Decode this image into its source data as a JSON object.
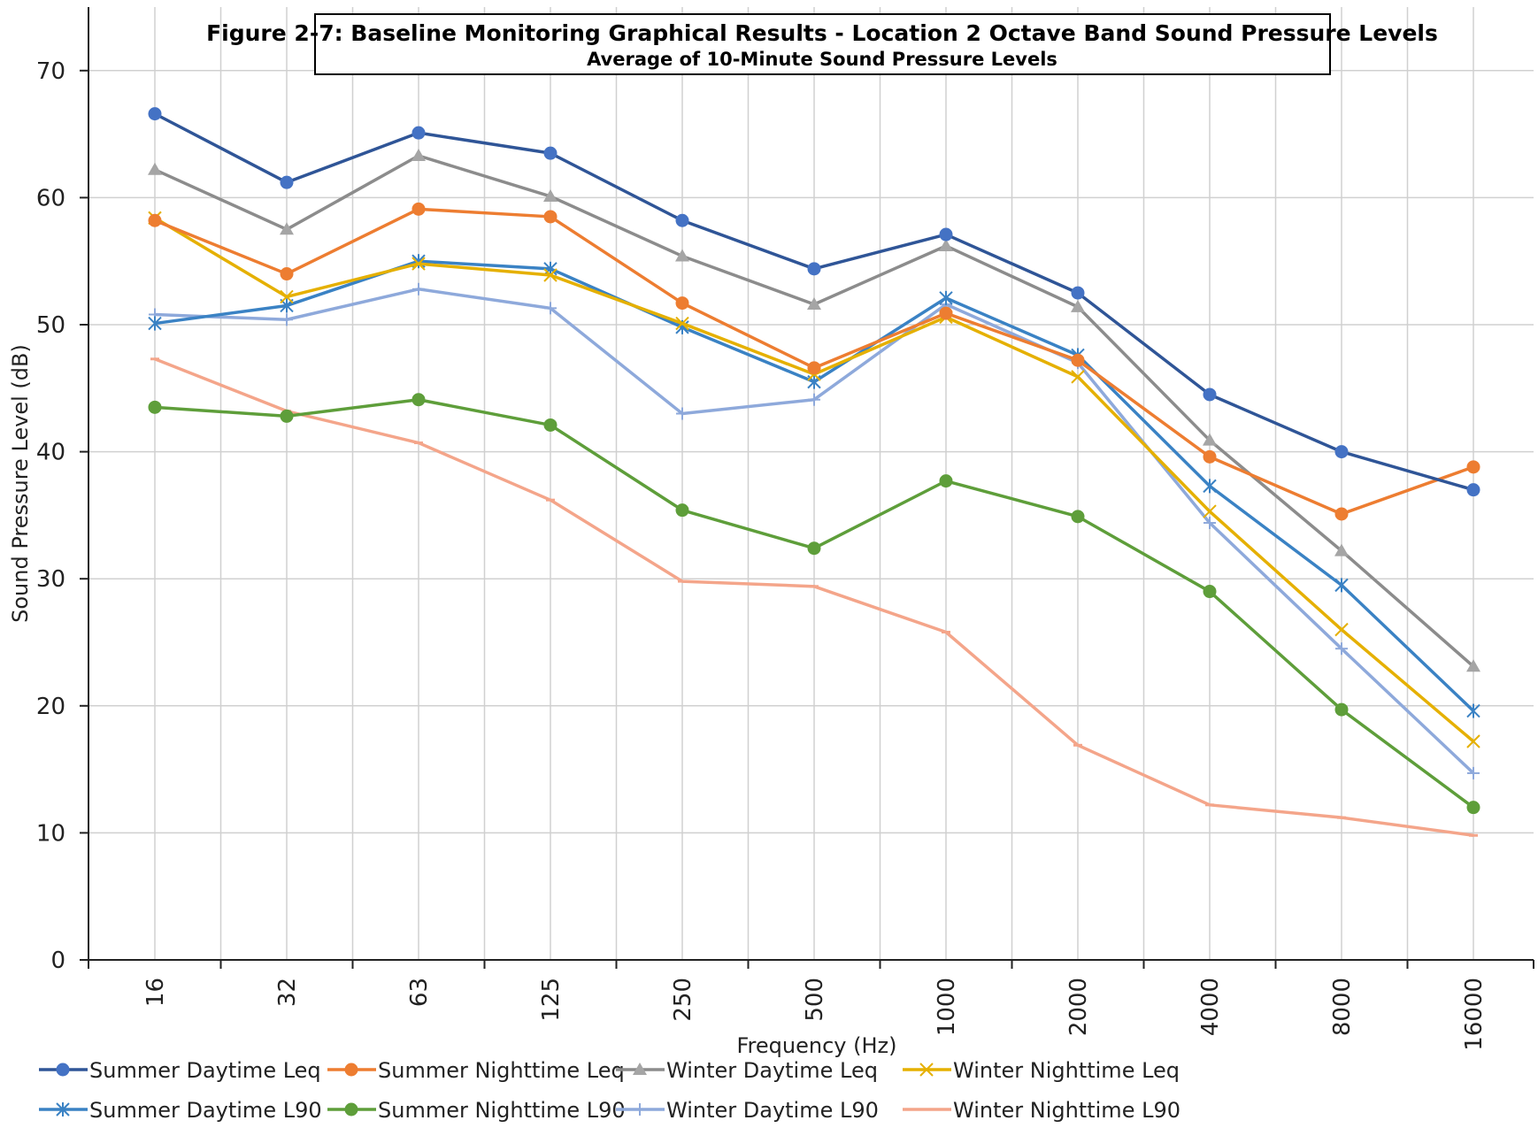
{
  "chart_data": {
    "type": "line",
    "title": "Figure 2-7:  Baseline Monitoring Graphical Results - Location 2 Octave Band Sound Pressure Levels",
    "subtitle": "Average of 10-Minute Sound Pressure Levels",
    "xlabel": "Frequency (Hz)",
    "ylabel": "Sound Pressure Level (dB)",
    "categories": [
      "16",
      "32",
      "63",
      "125",
      "250",
      "500",
      "1000",
      "2000",
      "4000",
      "8000",
      "16000"
    ],
    "ylim": [
      0,
      75
    ],
    "yticks": [
      0,
      10,
      20,
      30,
      40,
      50,
      60,
      70
    ],
    "grid": true,
    "legend_position": "bottom",
    "series": [
      {
        "name": "Summer Daytime Leq",
        "color": "#4472C4",
        "line_color": "#2F5597",
        "marker": "circle",
        "values": [
          66.6,
          61.2,
          65.1,
          63.5,
          58.2,
          54.4,
          57.1,
          52.5,
          44.5,
          40.0,
          37.0
        ]
      },
      {
        "name": "Summer Nighttime Leq",
        "color": "#ED7D31",
        "marker": "circle",
        "values": [
          58.2,
          54.0,
          59.1,
          58.5,
          51.7,
          46.6,
          50.9,
          47.2,
          39.6,
          35.1,
          38.8
        ]
      },
      {
        "name": "Winter Daytime Leq",
        "color": "#A5A5A5",
        "line_color": "#8C8C8C",
        "marker": "triangle",
        "values": [
          62.2,
          57.5,
          63.3,
          60.1,
          55.4,
          51.6,
          56.2,
          51.4,
          40.9,
          32.2,
          23.1
        ]
      },
      {
        "name": "Winter Nighttime Leq",
        "color": "#E5B000",
        "marker": "x",
        "values": [
          58.4,
          52.2,
          54.8,
          53.9,
          50.1,
          46.1,
          50.6,
          45.9,
          35.3,
          26.0,
          17.2
        ]
      },
      {
        "name": "Summer Daytime L90",
        "color": "#3A82C4",
        "marker": "star",
        "values": [
          50.1,
          51.5,
          55.0,
          54.4,
          49.8,
          45.5,
          52.1,
          47.6,
          37.3,
          29.5,
          19.6
        ]
      },
      {
        "name": "Summer Nighttime L90",
        "color": "#5E9E3A",
        "marker": "circle",
        "values": [
          43.5,
          42.8,
          44.1,
          42.1,
          35.4,
          32.4,
          37.7,
          34.9,
          29.0,
          19.7,
          12.0
        ]
      },
      {
        "name": "Winter Daytime L90",
        "color": "#8EA9DB",
        "marker": "plus",
        "values": [
          50.8,
          50.4,
          52.8,
          51.3,
          43.0,
          44.1,
          51.6,
          47.0,
          34.4,
          24.5,
          14.7
        ]
      },
      {
        "name": "Winter Nighttime L90",
        "color": "#F4A58A",
        "marker": "dash",
        "values": [
          47.3,
          43.2,
          40.7,
          36.2,
          29.8,
          29.4,
          25.8,
          16.9,
          12.2,
          11.2,
          9.8
        ]
      }
    ]
  }
}
